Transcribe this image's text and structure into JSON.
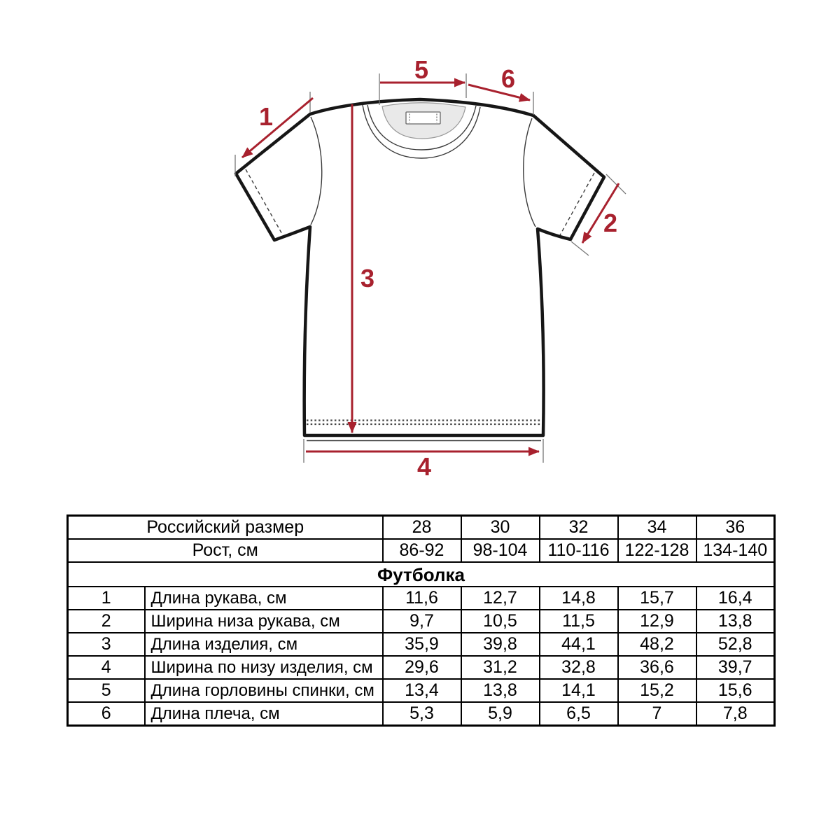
{
  "diagram": {
    "markers": [
      "1",
      "2",
      "3",
      "4",
      "5",
      "6"
    ],
    "arrow_color": "#a8212e",
    "outline_color": "#161616",
    "collar_fill": "#e9e9e9"
  },
  "table": {
    "size_row": {
      "label": "Российский размер",
      "values": [
        "28",
        "30",
        "32",
        "34",
        "36"
      ]
    },
    "height_row": {
      "label": "Рост, см",
      "values": [
        "86-92",
        "98-104",
        "110-116",
        "122-128",
        "134-140"
      ]
    },
    "section_title": "Футболка",
    "rows": [
      {
        "num": "1",
        "name": "Длина рукава, см",
        "values": [
          "11,6",
          "12,7",
          "14,8",
          "15,7",
          "16,4"
        ]
      },
      {
        "num": "2",
        "name": "Ширина низа рукава, см",
        "values": [
          "9,7",
          "10,5",
          "11,5",
          "12,9",
          "13,8"
        ]
      },
      {
        "num": "3",
        "name": "Длина изделия, см",
        "values": [
          "35,9",
          "39,8",
          "44,1",
          "48,2",
          "52,8"
        ]
      },
      {
        "num": "4",
        "name": "Ширина по низу изделия, см",
        "values": [
          "29,6",
          "31,2",
          "32,8",
          "36,6",
          "39,7"
        ]
      },
      {
        "num": "5",
        "name": "Длина горловины спинки, см",
        "values": [
          "13,4",
          "13,8",
          "14,1",
          "15,2",
          "15,6"
        ]
      },
      {
        "num": "6",
        "name": "Длина плеча, см",
        "values": [
          "5,3",
          "5,9",
          "6,5",
          "7",
          "7,8"
        ]
      }
    ]
  }
}
